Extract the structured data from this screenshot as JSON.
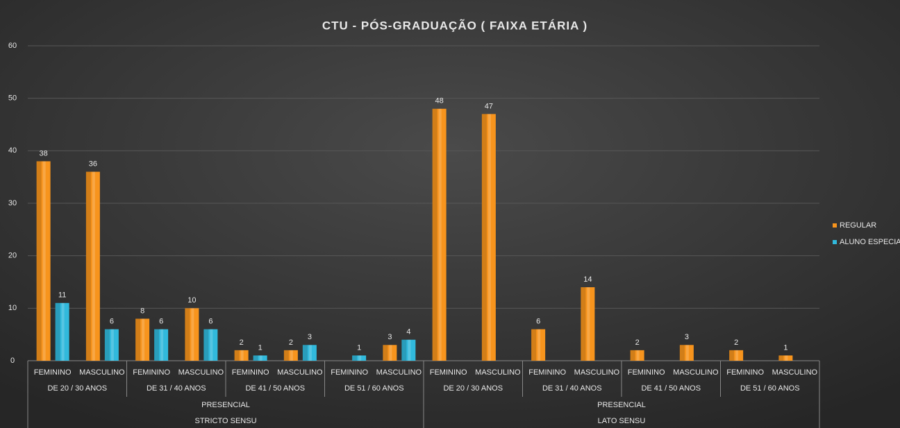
{
  "chart_data": {
    "type": "bar",
    "title": "CTU - PÓS-GRADUAÇÃO  ( FAIXA ETÁRIA )",
    "category_tree": [
      {
        "label": "STRICTO SENSU",
        "children": [
          {
            "label": "PRESENCIAL",
            "children": [
              {
                "label": "DE 20 / 30 ANOS",
                "children": [
                  "FEMININO",
                  "MASCULINO"
                ]
              },
              {
                "label": "DE 31 / 40 ANOS",
                "children": [
                  "FEMININO",
                  "MASCULINO"
                ]
              },
              {
                "label": "DE 41 / 50 ANOS",
                "children": [
                  "FEMININO",
                  "MASCULINO"
                ]
              },
              {
                "label": "DE 51 / 60 ANOS",
                "children": [
                  "FEMININO",
                  "MASCULINO"
                ]
              }
            ]
          }
        ]
      },
      {
        "label": "LATO SENSU",
        "children": [
          {
            "label": "PRESENCIAL",
            "children": [
              {
                "label": "DE 20 / 30 ANOS",
                "children": [
                  "FEMININO",
                  "MASCULINO"
                ]
              },
              {
                "label": "DE 31 / 40 ANOS",
                "children": [
                  "FEMININO",
                  "MASCULINO"
                ]
              },
              {
                "label": "DE 41 / 50 ANOS",
                "children": [
                  "FEMININO",
                  "MASCULINO"
                ]
              },
              {
                "label": "DE 51 / 60 ANOS",
                "children": [
                  "FEMININO",
                  "MASCULINO"
                ]
              }
            ]
          }
        ]
      }
    ],
    "series": [
      {
        "name": "REGULAR",
        "color": "#f7941d",
        "values": [
          38,
          36,
          8,
          10,
          2,
          2,
          null,
          3,
          48,
          47,
          6,
          14,
          2,
          3,
          2,
          1
        ]
      },
      {
        "name": "ALUNO ESPECIAL",
        "color": "#31b9dc",
        "values": [
          11,
          6,
          6,
          6,
          1,
          3,
          1,
          4,
          null,
          null,
          null,
          null,
          null,
          null,
          null,
          null
        ]
      }
    ],
    "ylim": [
      0,
      60
    ],
    "yticks": [
      0,
      10,
      20,
      30,
      40,
      50,
      60
    ],
    "grid": true,
    "legend": "right"
  }
}
